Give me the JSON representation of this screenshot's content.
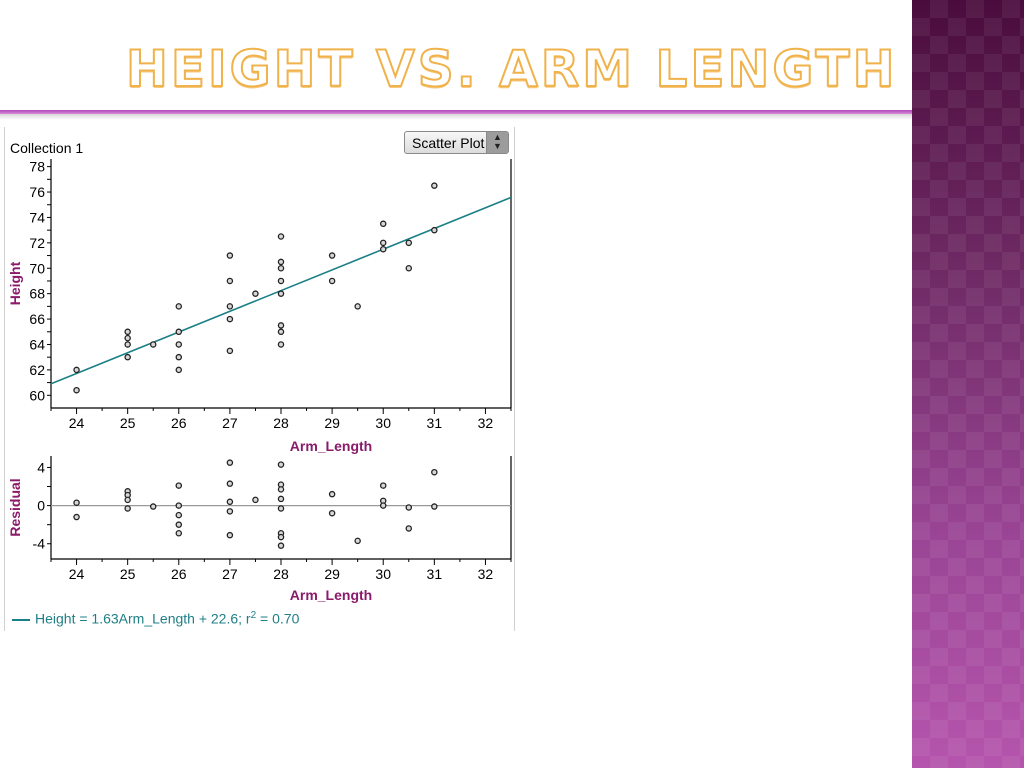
{
  "slide": {
    "title": "Height vs. Arm Length"
  },
  "panel": {
    "collection_label": "Collection 1",
    "plot_type_select": "Scatter Plot",
    "equation_prefix": "Height = 1.63Arm_Length + 22.6; r",
    "equation_sup": "2",
    "equation_suffix": " = 0.70"
  },
  "colors": {
    "title_outline": "#f0b24a",
    "rule": "#b04ab8",
    "regression_line": "#1a7f86",
    "axis_title": "#8a1a6a",
    "point_stroke": "#222222"
  },
  "chart_data": [
    {
      "type": "scatter",
      "xlabel": "Arm_Length",
      "ylabel": "Height",
      "xlim": [
        23.5,
        32.5
      ],
      "ylim": [
        59,
        78.6
      ],
      "xticks": [
        24,
        25,
        26,
        27,
        28,
        29,
        30,
        31,
        32
      ],
      "yticks": [
        60,
        62,
        64,
        66,
        68,
        70,
        72,
        74,
        76,
        78
      ],
      "points": [
        [
          24,
          62
        ],
        [
          24,
          60.4
        ],
        [
          25,
          65
        ],
        [
          25,
          64.5
        ],
        [
          25,
          64
        ],
        [
          25,
          63
        ],
        [
          25.5,
          64
        ],
        [
          26,
          67
        ],
        [
          26,
          65
        ],
        [
          26,
          64
        ],
        [
          26,
          63
        ],
        [
          26,
          62
        ],
        [
          27,
          71
        ],
        [
          27,
          69
        ],
        [
          27,
          67
        ],
        [
          27,
          66
        ],
        [
          27,
          63.5
        ],
        [
          27.5,
          68
        ],
        [
          28,
          72.5
        ],
        [
          28,
          70.5
        ],
        [
          28,
          70
        ],
        [
          28,
          69
        ],
        [
          28,
          68
        ],
        [
          28,
          65.5
        ],
        [
          28,
          65
        ],
        [
          28,
          64
        ],
        [
          29,
          71
        ],
        [
          29,
          69
        ],
        [
          29.5,
          67
        ],
        [
          30,
          73.5
        ],
        [
          30,
          72
        ],
        [
          30,
          71.5
        ],
        [
          30.5,
          72
        ],
        [
          30.5,
          70
        ],
        [
          31,
          76.5
        ],
        [
          31,
          73
        ]
      ],
      "regression": {
        "slope": 1.63,
        "intercept": 22.6
      }
    },
    {
      "type": "scatter",
      "xlabel": "Arm_Length",
      "ylabel": "Residual",
      "xlim": [
        23.5,
        32.5
      ],
      "ylim": [
        -5.6,
        5.2
      ],
      "xticks": [
        24,
        25,
        26,
        27,
        28,
        29,
        30,
        31,
        32
      ],
      "yticks": [
        -4,
        0,
        4
      ],
      "zero_line": true,
      "points": [
        [
          24,
          0.3
        ],
        [
          24,
          -1.2
        ],
        [
          25,
          1.5
        ],
        [
          25,
          1.1
        ],
        [
          25,
          0.6
        ],
        [
          25,
          -0.3
        ],
        [
          25.5,
          -0.1
        ],
        [
          26,
          2.1
        ],
        [
          26,
          0
        ],
        [
          26,
          -1
        ],
        [
          26,
          -2
        ],
        [
          26,
          -2.9
        ],
        [
          27,
          4.5
        ],
        [
          27,
          2.3
        ],
        [
          27,
          0.4
        ],
        [
          27,
          -0.6
        ],
        [
          27,
          -3.1
        ],
        [
          27.5,
          0.6
        ],
        [
          28,
          4.3
        ],
        [
          28,
          2.2
        ],
        [
          28,
          1.7
        ],
        [
          28,
          0.7
        ],
        [
          28,
          -0.3
        ],
        [
          28,
          -2.9
        ],
        [
          28,
          -3.3
        ],
        [
          28,
          -4.2
        ],
        [
          29,
          1.2
        ],
        [
          29,
          -0.8
        ],
        [
          29.5,
          -3.7
        ],
        [
          30,
          2.1
        ],
        [
          30,
          0.5
        ],
        [
          30,
          0
        ],
        [
          30.5,
          -0.2
        ],
        [
          30.5,
          -2.4
        ],
        [
          31,
          3.5
        ],
        [
          31,
          -0.1
        ]
      ]
    }
  ]
}
